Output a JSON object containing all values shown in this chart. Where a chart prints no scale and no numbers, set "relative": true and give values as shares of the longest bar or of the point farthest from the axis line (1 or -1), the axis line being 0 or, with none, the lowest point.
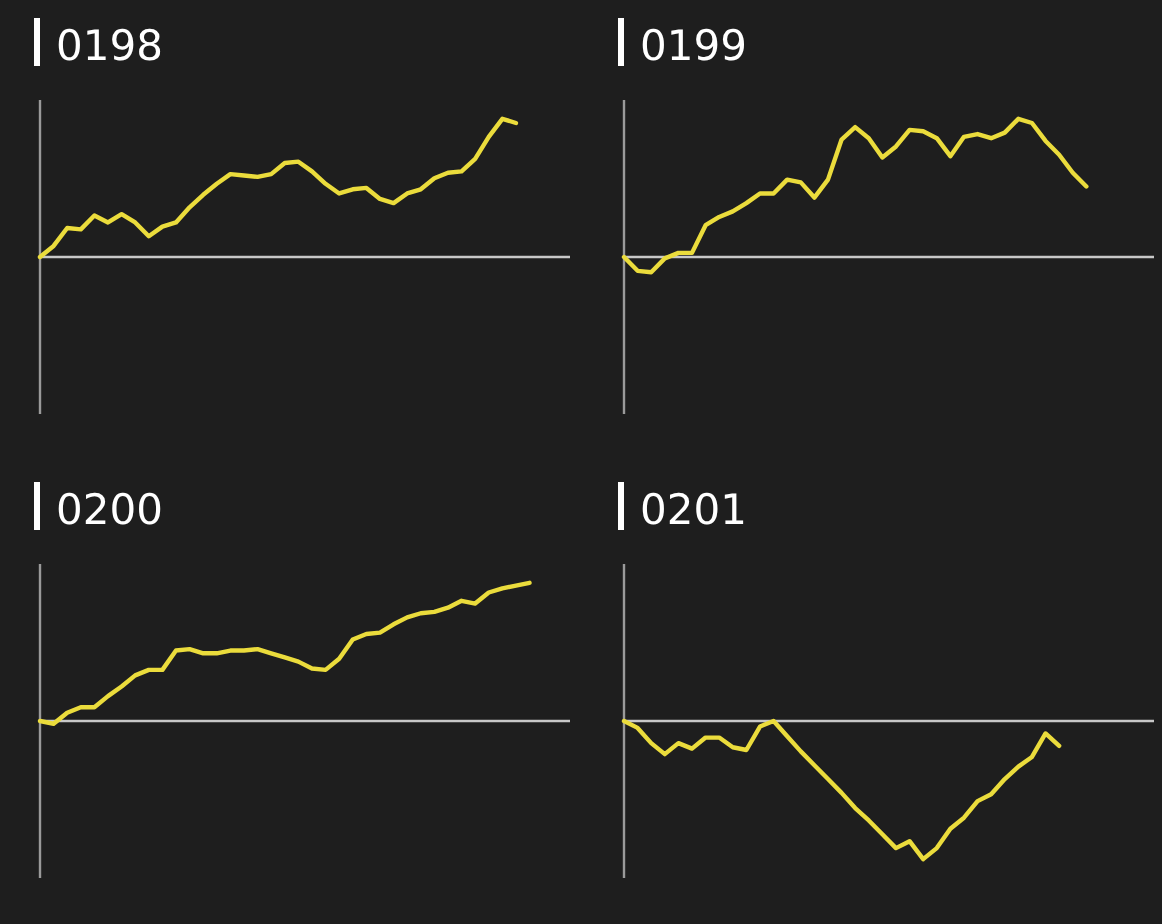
{
  "chart_data": [
    {
      "type": "line",
      "title": "0198",
      "relative": true,
      "color": "#ebdc3c",
      "categories": [
        null,
        null,
        null,
        null,
        null,
        null,
        null,
        null,
        null,
        null,
        null,
        null,
        null,
        null,
        null,
        null,
        null,
        null,
        null,
        null,
        null,
        null,
        null,
        null,
        null,
        null,
        null,
        null,
        null,
        null,
        null,
        null,
        null,
        null,
        null,
        null,
        null,
        null,
        null
      ],
      "values": [
        0,
        0.08,
        0.21,
        0.2,
        0.3,
        0.25,
        0.31,
        0.25,
        0.15,
        0.22,
        0.25,
        0.36,
        0.45,
        0.53,
        0.6,
        0.59,
        0.58,
        0.6,
        0.68,
        0.69,
        0.62,
        0.53,
        0.46,
        0.49,
        0.5,
        0.42,
        0.39,
        0.46,
        0.49,
        0.57,
        0.61,
        0.62,
        0.71,
        0.87,
        1,
        0.97,
        null,
        null,
        null
      ]
    },
    {
      "type": "line",
      "title": "0199",
      "relative": true,
      "color": "#ebdc3c",
      "categories": [
        null,
        null,
        null,
        null,
        null,
        null,
        null,
        null,
        null,
        null,
        null,
        null,
        null,
        null,
        null,
        null,
        null,
        null,
        null,
        null,
        null,
        null,
        null,
        null,
        null,
        null,
        null,
        null,
        null,
        null,
        null,
        null,
        null,
        null,
        null,
        null,
        null,
        null,
        null
      ],
      "values": [
        0,
        -0.1,
        -0.11,
        -0.01,
        0.03,
        0.03,
        0.23,
        0.29,
        0.33,
        0.39,
        0.46,
        0.46,
        0.56,
        0.54,
        0.43,
        0.56,
        0.85,
        0.94,
        0.86,
        0.72,
        0.8,
        0.92,
        0.91,
        0.86,
        0.73,
        0.87,
        0.89,
        0.86,
        0.9,
        1,
        0.97,
        0.84,
        0.74,
        0.61,
        0.51,
        null,
        null,
        null,
        null
      ]
    },
    {
      "type": "line",
      "title": "0200",
      "relative": true,
      "color": "#ebdc3c",
      "categories": [
        null,
        null,
        null,
        null,
        null,
        null,
        null,
        null,
        null,
        null,
        null,
        null,
        null,
        null,
        null,
        null,
        null,
        null,
        null,
        null,
        null,
        null,
        null,
        null,
        null,
        null,
        null,
        null,
        null,
        null,
        null,
        null,
        null,
        null,
        null,
        null,
        null,
        null,
        null
      ],
      "values": [
        0,
        -0.02,
        0.06,
        0.1,
        0.1,
        0.18,
        0.25,
        0.33,
        0.37,
        0.37,
        0.51,
        0.52,
        0.49,
        0.49,
        0.51,
        0.51,
        0.52,
        0.49,
        0.46,
        0.43,
        0.38,
        0.37,
        0.45,
        0.59,
        0.63,
        0.64,
        0.7,
        0.75,
        0.78,
        0.79,
        0.82,
        0.87,
        0.85,
        0.93,
        0.96,
        0.98,
        1,
        null,
        null
      ]
    },
    {
      "type": "line",
      "title": "0201",
      "relative": true,
      "color": "#ebdc3c",
      "categories": [
        null,
        null,
        null,
        null,
        null,
        null,
        null,
        null,
        null,
        null,
        null,
        null,
        null,
        null,
        null,
        null,
        null,
        null,
        null,
        null,
        null,
        null,
        null,
        null,
        null,
        null,
        null,
        null,
        null,
        null,
        null,
        null,
        null,
        null,
        null,
        null,
        null,
        null,
        null
      ],
      "values": [
        0,
        -0.05,
        -0.16,
        -0.24,
        -0.16,
        -0.2,
        -0.12,
        -0.12,
        -0.19,
        -0.21,
        -0.04,
        0,
        -0.11,
        -0.22,
        -0.32,
        -0.42,
        -0.52,
        -0.63,
        -0.72,
        -0.82,
        -0.92,
        -0.87,
        -1,
        -0.92,
        -0.78,
        -0.7,
        -0.58,
        -0.53,
        -0.42,
        -0.33,
        -0.26,
        -0.09,
        -0.18,
        null,
        null,
        null,
        null,
        null,
        null
      ]
    }
  ]
}
